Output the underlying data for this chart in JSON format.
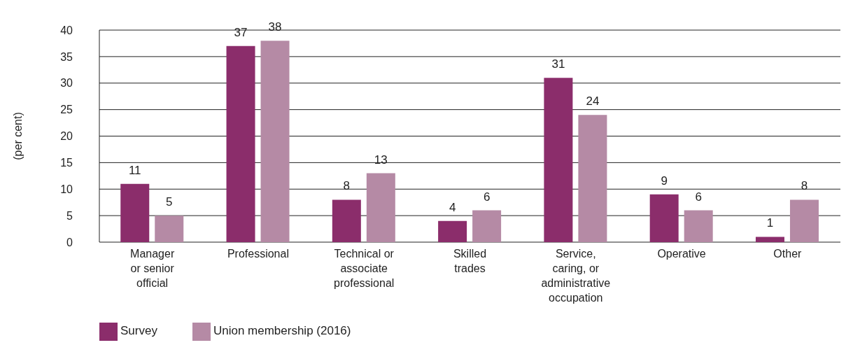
{
  "chart_data": {
    "type": "bar",
    "ylabel": "(per cent)",
    "categories": [
      "Manager\nor senior\nofficial",
      "Professional",
      "Technical or\nassociate\nprofessional",
      "Skilled\ntrades",
      "Service,\ncaring, or\nadministrative\noccupation",
      "Operative",
      "Other"
    ],
    "series": [
      {
        "name": "Survey",
        "color": "#8b2d6b",
        "values": [
          11,
          37,
          8,
          4,
          31,
          9,
          1
        ]
      },
      {
        "name": "Union membership (2016)",
        "color": "#b58aa5",
        "values": [
          5,
          38,
          13,
          6,
          24,
          6,
          8
        ]
      }
    ],
    "ylim": [
      0,
      40
    ],
    "yticks": [
      0,
      5,
      10,
      15,
      20,
      25,
      30,
      35,
      40
    ],
    "grid": "y",
    "legend": "bottom left",
    "data_labels": true
  }
}
